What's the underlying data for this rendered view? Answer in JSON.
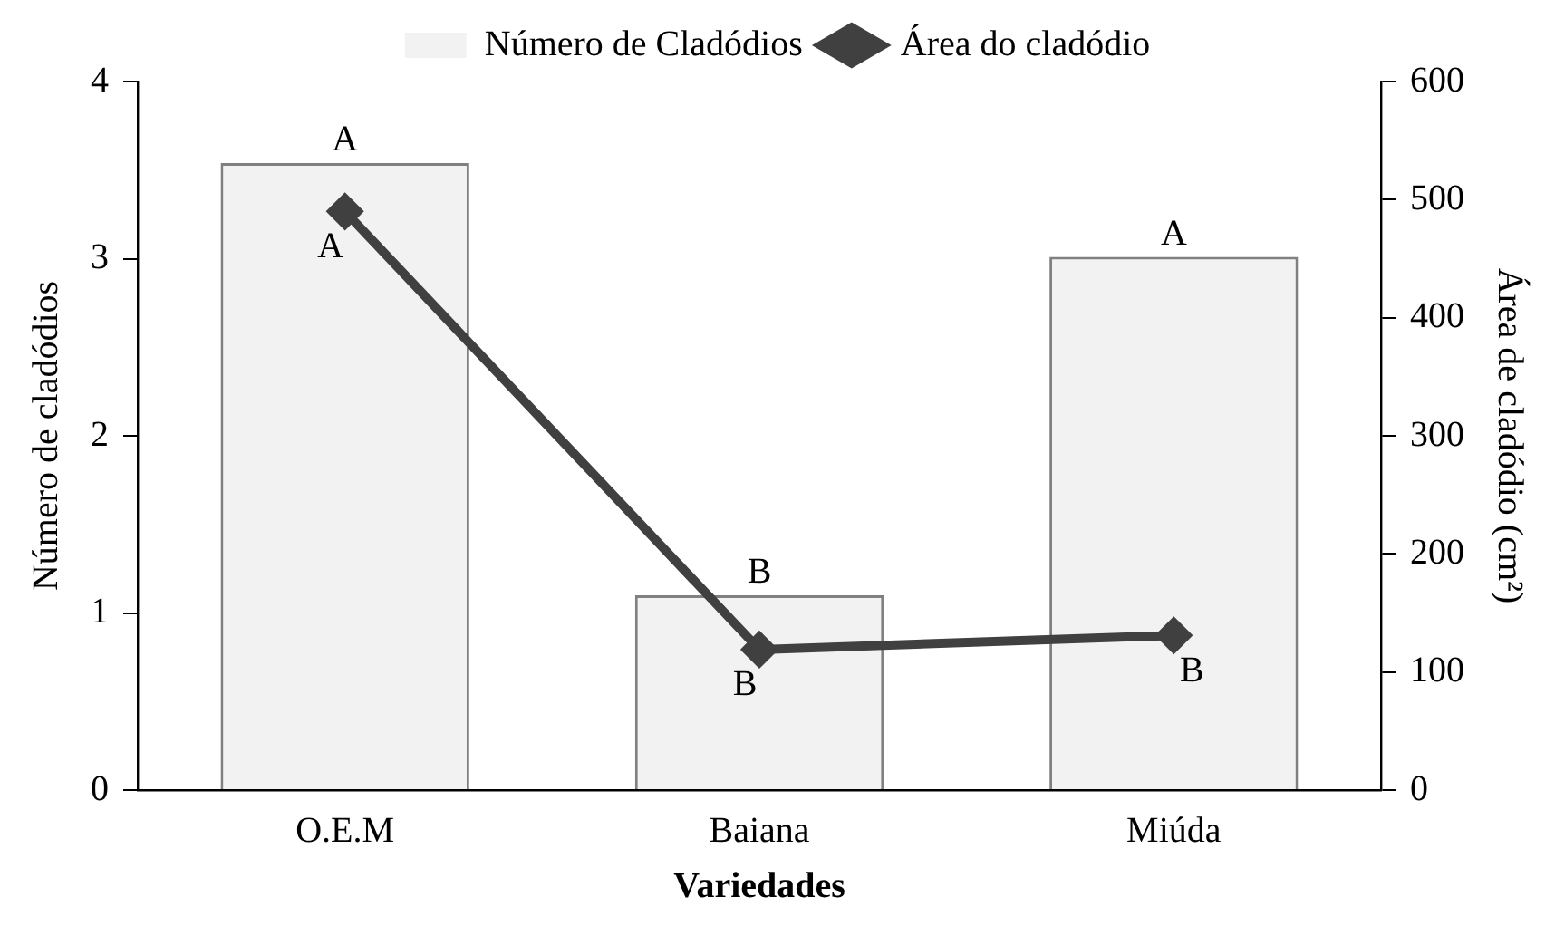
{
  "chart_data": {
    "type": "bar",
    "xlabel": "Variedades",
    "ylabel": "Número de cladódios",
    "y2label": "Área de cladódio (cm²)",
    "categories": [
      "O.E.M",
      "Baiana",
      "Miúda"
    ],
    "series": [
      {
        "name": "Número de Cladódios",
        "color": "#f2f2f2",
        "values": [
          3.54,
          1.1,
          3.01
        ],
        "value_labels": [
          "A",
          "B",
          "A"
        ]
      },
      {
        "name": "Área do cladódio",
        "type": "line",
        "axis": "y2",
        "color": "#404040",
        "values": [
          490,
          119,
          131
        ],
        "value_labels": [
          "A",
          "B",
          "B"
        ],
        "marker": "diamond"
      }
    ],
    "ylim": [
      0,
      4
    ],
    "yticks": [
      0,
      1,
      2,
      3,
      4
    ],
    "y2lim": [
      0,
      600
    ],
    "y2ticks": [
      0,
      100,
      200,
      300,
      400,
      500,
      600
    ],
    "grid": false,
    "legend": "top"
  }
}
